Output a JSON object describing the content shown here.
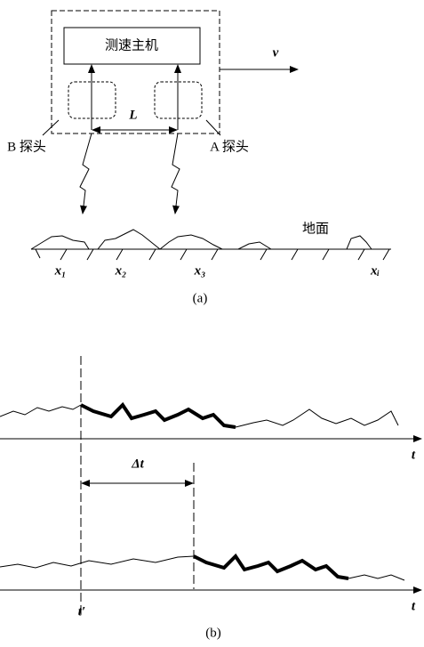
{
  "panel_a": {
    "host": "测速主机",
    "velocity": "v",
    "spacing": "L",
    "probe_b": "B 探头",
    "probe_a": "A 探头",
    "ground": "地面",
    "positions": [
      "x₁",
      "x₂",
      "x₃",
      "xᵢ"
    ],
    "caption": "(a)"
  },
  "panel_b": {
    "axis_top": "t",
    "delay": "Δt",
    "axis_bottom": "t",
    "start": "t′",
    "caption": "(b)"
  }
}
